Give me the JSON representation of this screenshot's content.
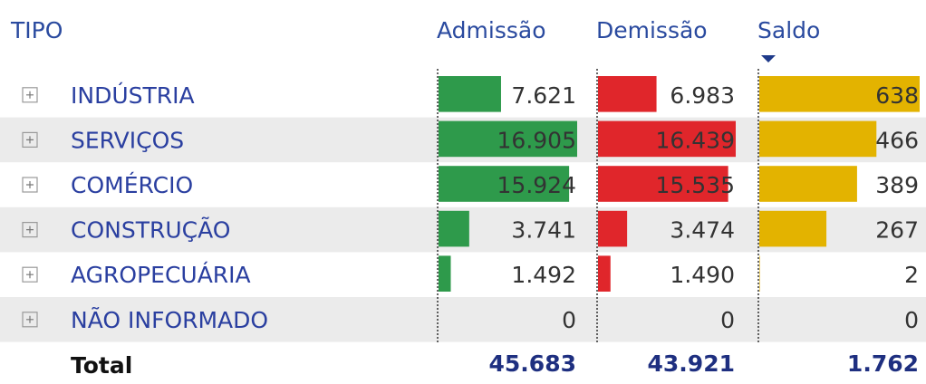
{
  "table": {
    "headers": [
      "TIPO",
      "Admissão",
      "Demissão",
      "Saldo"
    ],
    "rows": [
      {
        "tipo": "INDÚSTRIA",
        "cells": [
          {
            "value": 7621,
            "label": "7.621"
          },
          {
            "value": 6983,
            "label": "6.983"
          },
          {
            "value": 638,
            "label": "638"
          }
        ]
      },
      {
        "tipo": "SERVIÇOS",
        "cells": [
          {
            "value": 16905,
            "label": "16.905"
          },
          {
            "value": 16439,
            "label": "16.439"
          },
          {
            "value": 466,
            "label": "466"
          }
        ]
      },
      {
        "tipo": "COMÉRCIO",
        "cells": [
          {
            "value": 15924,
            "label": "15.924"
          },
          {
            "value": 15535,
            "label": "15.535"
          },
          {
            "value": 389,
            "label": "389"
          }
        ]
      },
      {
        "tipo": "CONSTRUÇÃO",
        "cells": [
          {
            "value": 3741,
            "label": "3.741"
          },
          {
            "value": 3474,
            "label": "3.474"
          },
          {
            "value": 267,
            "label": "267"
          }
        ]
      },
      {
        "tipo": "AGROPECUÁRIA",
        "cells": [
          {
            "value": 1492,
            "label": "1.492"
          },
          {
            "value": 1490,
            "label": "1.490"
          },
          {
            "value": 2,
            "label": "2"
          }
        ]
      },
      {
        "tipo": "NÃO INFORMADO",
        "cells": [
          {
            "value": 0,
            "label": "0"
          },
          {
            "value": 0,
            "label": "0"
          },
          {
            "value": 0,
            "label": "0"
          }
        ]
      }
    ],
    "total": {
      "label": "Total",
      "cells": [
        "45.683",
        "43.921",
        "1.762"
      ]
    },
    "bar_colors": [
      "#2e9a4b",
      "#e0262b",
      "#e3b300"
    ]
  }
}
